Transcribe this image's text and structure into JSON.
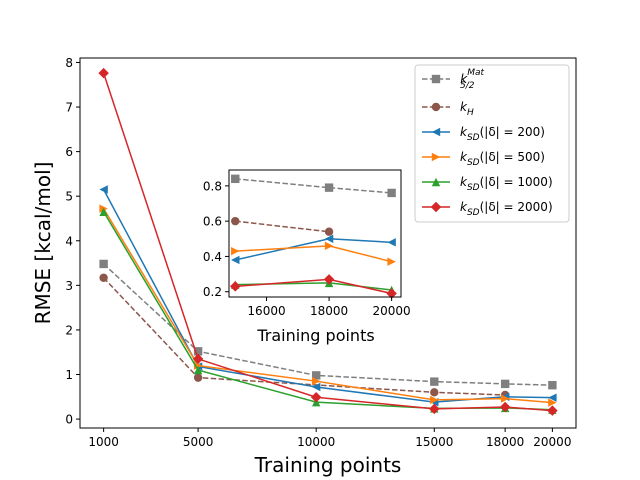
{
  "chart_data": [
    {
      "type": "line",
      "role": "main",
      "xlabel": "Training points",
      "ylabel": "RMSE [kcal/mol]",
      "x": [
        1000,
        5000,
        10000,
        15000,
        18000,
        20000
      ],
      "xticks": [
        1000,
        5000,
        10000,
        15000,
        18000,
        20000
      ],
      "xlim": [
        0,
        21000
      ],
      "ylim": [
        -0.2,
        8.1
      ],
      "yticks": [
        0,
        1,
        2,
        3,
        4,
        5,
        6,
        7,
        8
      ],
      "legend_position": "top-right",
      "series": [
        {
          "name": "k_5/2^Mat",
          "label_main": "k",
          "label_sub": "5/2",
          "label_sup": "Mat",
          "color": "#7f7f7f",
          "line_style": "dashed",
          "marker": "square",
          "values": [
            3.48,
            1.52,
            0.98,
            0.84,
            0.79,
            0.76
          ]
        },
        {
          "name": "k_H",
          "label_main": "k",
          "label_sub": "H",
          "label_sup": "",
          "color": "#8c564b",
          "line_style": "dashed",
          "marker": "circle",
          "values": [
            3.17,
            0.93,
            null,
            0.6,
            0.54,
            null
          ]
        },
        {
          "name": "k_SD(|δ|=200)",
          "label_main": "k",
          "label_sub": "SD",
          "label_rest": "(|δ| = 200)",
          "color": "#1f77b4",
          "line_style": "solid",
          "marker": "triangle-left",
          "values": [
            5.15,
            1.18,
            0.72,
            0.38,
            0.5,
            0.48
          ]
        },
        {
          "name": "k_SD(|δ|=500)",
          "label_main": "k",
          "label_sub": "SD",
          "label_rest": "(|δ| = 500)",
          "color": "#ff7f0e",
          "line_style": "solid",
          "marker": "triangle-right",
          "values": [
            4.72,
            1.2,
            0.85,
            0.43,
            0.46,
            0.37
          ]
        },
        {
          "name": "k_SD(|δ|=1000)",
          "label_main": "k",
          "label_sub": "SD",
          "label_rest": "(|δ| = 1000)",
          "color": "#2ca02c",
          "line_style": "solid",
          "marker": "triangle-up",
          "values": [
            4.65,
            1.1,
            0.38,
            0.24,
            0.25,
            0.21
          ]
        },
        {
          "name": "k_SD(|δ|=2000)",
          "label_main": "k",
          "label_sub": "SD",
          "label_rest": "(|δ| = 2000)",
          "color": "#d62728",
          "line_style": "solid",
          "marker": "diamond",
          "values": [
            7.76,
            1.35,
            0.49,
            0.23,
            0.27,
            0.19
          ]
        }
      ]
    },
    {
      "type": "line",
      "role": "inset",
      "xlabel": "Training points",
      "ylabel": "",
      "x": [
        15000,
        18000,
        20000
      ],
      "xticks": [
        16000,
        18000,
        20000
      ],
      "xlim": [
        14800,
        20300
      ],
      "ylim": [
        0.17,
        0.89
      ],
      "yticks": [
        0.2,
        0.4,
        0.6,
        0.8
      ],
      "series": [
        {
          "name": "k_5/2^Mat",
          "values": [
            0.84,
            0.79,
            0.76
          ]
        },
        {
          "name": "k_H",
          "values": [
            0.6,
            0.54,
            null
          ]
        },
        {
          "name": "k_SD(|δ|=200)",
          "values": [
            0.38,
            0.5,
            0.48
          ]
        },
        {
          "name": "k_SD(|δ|=500)",
          "values": [
            0.43,
            0.46,
            0.37
          ]
        },
        {
          "name": "k_SD(|δ|=1000)",
          "values": [
            0.24,
            0.25,
            0.21
          ]
        },
        {
          "name": "k_SD(|δ|=2000)",
          "values": [
            0.23,
            0.27,
            0.19
          ]
        }
      ]
    }
  ]
}
